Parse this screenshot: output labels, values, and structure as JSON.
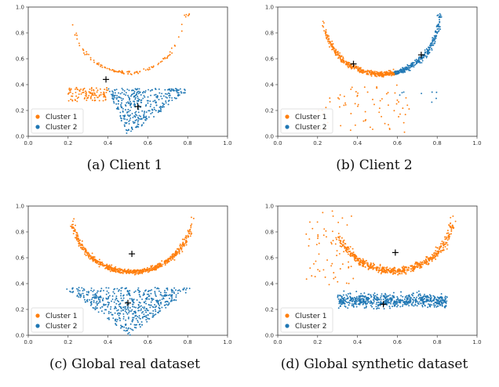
{
  "colors": {
    "cluster1": "#ff7f0e",
    "cluster2": "#1f77b4",
    "centroid": "#000000"
  },
  "legend_labels": [
    "Cluster 1",
    "Cluster 2"
  ],
  "chart_data": [
    {
      "type": "scatter",
      "caption": "(a)  Client 1",
      "xlim": [
        0,
        1
      ],
      "ylim": [
        0,
        1
      ],
      "xticks": [
        "0.0",
        "0.2",
        "0.4",
        "0.6",
        "0.8",
        "1.0"
      ],
      "yticks": [
        "0.0",
        "0.2",
        "0.4",
        "0.6",
        "0.8",
        "1.0"
      ],
      "legend": "bottom-left",
      "series": [
        {
          "name": "Cluster 1",
          "shape": "arc",
          "x_range": [
            0.22,
            0.81
          ],
          "center": [
            0.5,
            0.94
          ],
          "rx": 0.28,
          "ry": 0.45,
          "n": 110,
          "noise": 0.012,
          "arc_sparse": true
        },
        {
          "name": "Cluster 1",
          "shape": "band",
          "x_range": [
            0.2,
            0.4
          ],
          "y_range": [
            0.27,
            0.38
          ],
          "n": 110
        },
        {
          "name": "Cluster 2",
          "shape": "triangle",
          "x_range": [
            0.4,
            0.82
          ],
          "apex_x": 0.5,
          "apex_y": 0.0,
          "top_y": 0.37,
          "n": 360
        }
      ],
      "centroids": [
        {
          "name": "Cluster 1",
          "x": 0.39,
          "y": 0.44
        },
        {
          "name": "Cluster 2",
          "x": 0.55,
          "y": 0.23
        }
      ]
    },
    {
      "type": "scatter",
      "caption": "(b)  Client 2",
      "xlim": [
        0,
        1
      ],
      "ylim": [
        0,
        1
      ],
      "xticks": [
        "0.0",
        "0.2",
        "0.4",
        "0.6",
        "0.8",
        "1.0"
      ],
      "yticks": [
        "0.0",
        "0.2",
        "0.4",
        "0.6",
        "0.8",
        "1.0"
      ],
      "legend": "bottom-left",
      "series": [
        {
          "name": "Cluster 1",
          "shape": "arc",
          "x_range": [
            0.23,
            0.59
          ],
          "center": [
            0.52,
            0.93
          ],
          "rx": 0.29,
          "ry": 0.45,
          "n": 380,
          "noise": 0.018
        },
        {
          "name": "Cluster 1",
          "shape": "cloud",
          "x_range": [
            0.2,
            0.66
          ],
          "y_range": [
            0.03,
            0.4
          ],
          "n": 70
        },
        {
          "name": "Cluster 2",
          "shape": "arc",
          "x_range": [
            0.59,
            0.82
          ],
          "center": [
            0.52,
            0.93
          ],
          "rx": 0.29,
          "ry": 0.45,
          "n": 260,
          "noise": 0.018
        },
        {
          "name": "Cluster 2",
          "shape": "cloud",
          "x_range": [
            0.6,
            0.8
          ],
          "y_range": [
            0.24,
            0.38
          ],
          "n": 8
        }
      ],
      "centroids": [
        {
          "name": "Cluster 1",
          "x": 0.38,
          "y": 0.56
        },
        {
          "name": "Cluster 2",
          "x": 0.72,
          "y": 0.63
        }
      ]
    },
    {
      "type": "scatter",
      "caption": "(c)  Global real dataset",
      "xlim": [
        0,
        1
      ],
      "ylim": [
        0,
        1
      ],
      "xticks": [
        "0.0",
        "0.2",
        "0.4",
        "0.6",
        "0.8",
        "1.0"
      ],
      "yticks": [
        "0.0",
        "0.2",
        "0.4",
        "0.6",
        "0.8",
        "1.0"
      ],
      "legend": "bottom-left",
      "series": [
        {
          "name": "Cluster 1",
          "shape": "arc",
          "x_range": [
            0.22,
            0.82
          ],
          "center": [
            0.52,
            0.93
          ],
          "rx": 0.3,
          "ry": 0.44,
          "n": 620,
          "noise": 0.018
        },
        {
          "name": "Cluster 2",
          "shape": "triangle",
          "x_range": [
            0.18,
            0.83
          ],
          "apex_x": 0.51,
          "apex_y": 0.0,
          "top_y": 0.37,
          "n": 520
        }
      ],
      "centroids": [
        {
          "name": "Cluster 1",
          "x": 0.52,
          "y": 0.63
        },
        {
          "name": "Cluster 2",
          "x": 0.5,
          "y": 0.25
        }
      ]
    },
    {
      "type": "scatter",
      "caption": "(d)  Global synthetic dataset",
      "xlim": [
        0,
        1
      ],
      "ylim": [
        0,
        1
      ],
      "xticks": [
        "0.0",
        "0.2",
        "0.4",
        "0.6",
        "0.8",
        "1.0"
      ],
      "yticks": [
        "0.0",
        "0.2",
        "0.4",
        "0.6",
        "0.8",
        "1.0"
      ],
      "legend": "bottom-left",
      "series": [
        {
          "name": "Cluster 1",
          "shape": "arc",
          "x_range": [
            0.3,
            0.88
          ],
          "center": [
            0.58,
            0.94
          ],
          "rx": 0.3,
          "ry": 0.44,
          "n": 560,
          "noise": 0.025
        },
        {
          "name": "Cluster 1",
          "shape": "cloud",
          "x_range": [
            0.14,
            0.38
          ],
          "y_range": [
            0.38,
            0.98
          ],
          "n": 60
        },
        {
          "name": "Cluster 2",
          "shape": "band",
          "x_range": [
            0.3,
            0.85
          ],
          "y_range": [
            0.05,
            0.4
          ],
          "n": 620,
          "center_y": 0.27
        }
      ],
      "centroids": [
        {
          "name": "Cluster 1",
          "x": 0.59,
          "y": 0.64
        },
        {
          "name": "Cluster 2",
          "x": 0.53,
          "y": 0.24
        }
      ]
    }
  ]
}
